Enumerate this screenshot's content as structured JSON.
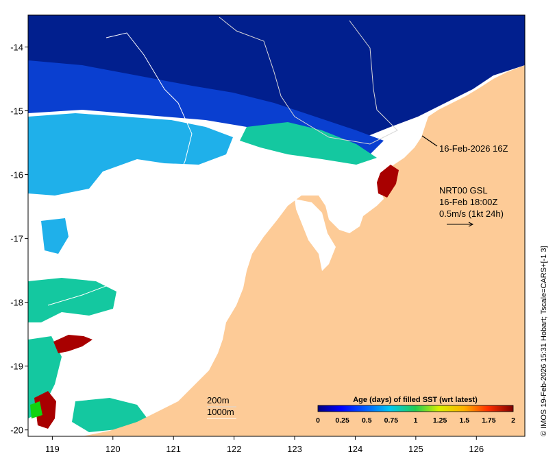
{
  "map": {
    "lon_range": [
      118.6,
      126.8
    ],
    "lat_range": [
      -20.1,
      -13.5
    ],
    "x_ticks": [
      "119",
      "120",
      "121",
      "122",
      "123",
      "124",
      "125",
      "126"
    ],
    "y_ticks": [
      "-14",
      "-15",
      "-16",
      "-17",
      "-18",
      "-19",
      "-20"
    ],
    "colors": {
      "land": "#fdcb97",
      "deep_blue": "#011f8e",
      "mid_blue": "#0a3fd0",
      "light_blue": "#1fb0ea",
      "teal": "#14c8a0",
      "dark_red": "#a80000",
      "green": "#11d311",
      "white_ocean": "#ffffff"
    }
  },
  "annotations": {
    "track_time": "16-Feb-2026 16Z",
    "product_line1": "NRT00 GSL",
    "product_line2": "16-Feb 18:00Z",
    "scale_line3": "0.5m/s (1kt 24h)",
    "contour_200": "200m",
    "contour_1000": "1000m"
  },
  "colorbar": {
    "title": "Age (days) of filled SST (wrt latest)",
    "ticks": [
      "0",
      "0.25",
      "0.5",
      "0.75",
      "1",
      "1.25",
      "1.5",
      "1.75",
      "2"
    ],
    "stops": [
      "#00007f",
      "#0000ff",
      "#0080ff",
      "#00d8e8",
      "#22cc44",
      "#d8f000",
      "#ffb000",
      "#ff4000",
      "#7f0000"
    ]
  },
  "credit": "© IMOS 19-Feb-2026 15:31 Hobart; Tscale=CARS+[-1 3]"
}
